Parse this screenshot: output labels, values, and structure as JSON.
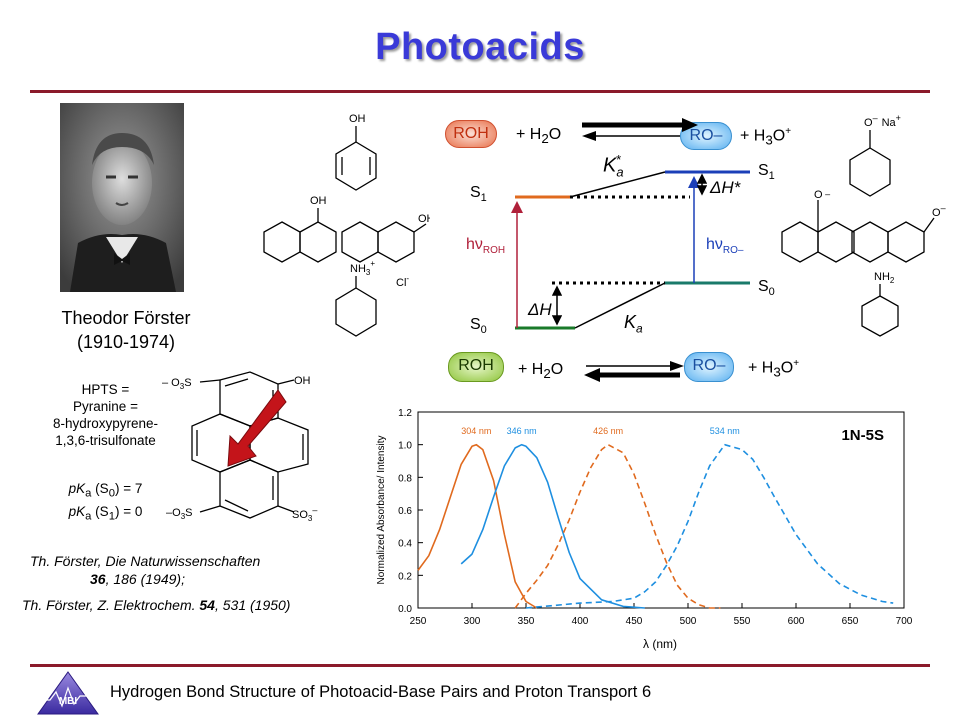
{
  "slide": {
    "title": "Photoacids",
    "footer": "Hydrogen Bond Structure of Photoacid-Base Pairs and Proton Transport 6",
    "logo_text": "MBI"
  },
  "person": {
    "name": "Theodor Förster",
    "years": "(1910-1974)"
  },
  "hpts": {
    "line1": "HPTS =",
    "line2": "Pyranine =",
    "line3": "8-hydroxypyrene-",
    "line4": "1,3,6-trisulfonate",
    "pka_s0_label": "pK",
    "pka_s0_rest": " (S",
    "pka_s0_sub": "0",
    "pka_s0_val": ") = 7",
    "pka_s1_rest": " (S",
    "pka_s1_sub": "1",
    "pka_s1_val": ") = 0",
    "pka_sub": "a"
  },
  "structures": {
    "oh": "OH",
    "o_minus": "O",
    "na_plus": "Na",
    "nh3": "NH",
    "nh2": "NH",
    "cl": "Cl",
    "so3_left_top": "O",
    "so3": "S",
    "so3_right": "SO"
  },
  "references": {
    "ref1_a": "Th. Förster, Die Naturwissenschaften",
    "ref1_vol": "36",
    "ref1_b": ", 186 (1949);",
    "ref2_a": "Th. Förster, Z. Elektrochem. ",
    "ref2_vol": "54",
    "ref2_b": ", 531 (1950)"
  },
  "scheme": {
    "roh": "ROH",
    "ro": "RO",
    "h2o": "+ H",
    "h3o": "+ H",
    "ka_star": "K",
    "ka": "K",
    "dh_star": "ΔH*",
    "dh": "ΔH",
    "s1": "S",
    "s0": "S",
    "hv_roh": "hν",
    "hv_ro": "hν",
    "hv_roh_sub": "ROH",
    "hv_ro_sub": "RO–"
  },
  "colors": {
    "title": "#3a3ad8",
    "rule": "#8b1a2a",
    "orange": "#e06a1e",
    "blue": "#1e8fe0",
    "dark_blue": "#1b3fb8",
    "green": "#1a7a2a",
    "teal": "#1a7a6a",
    "crimson": "#b0203a"
  },
  "chart_data": {
    "type": "line",
    "title": "1N-5S",
    "xlabel": "λ (nm)",
    "ylabel": "Normalized Absorbance/ Intensity",
    "xlim": [
      250,
      700
    ],
    "ylim": [
      0.0,
      1.2
    ],
    "xticks": [
      250,
      300,
      350,
      400,
      450,
      500,
      550,
      600,
      650,
      700
    ],
    "yticks": [
      0.0,
      0.2,
      0.4,
      0.6,
      0.8,
      1.0,
      1.2
    ],
    "peak_labels": [
      "304 nm",
      "346 nm",
      "426 nm",
      "534 nm"
    ],
    "series": [
      {
        "peak": 304,
        "color": "#e06a1e",
        "style": "solid",
        "x": [
          250,
          260,
          270,
          280,
          290,
          300,
          304,
          310,
          320,
          330,
          340,
          350,
          360
        ],
        "y": [
          0.23,
          0.32,
          0.48,
          0.68,
          0.88,
          0.99,
          1.0,
          0.97,
          0.78,
          0.45,
          0.16,
          0.04,
          0.0
        ]
      },
      {
        "peak": 346,
        "color": "#1e8fe0",
        "style": "solid",
        "x": [
          290,
          300,
          310,
          320,
          330,
          340,
          346,
          350,
          360,
          370,
          380,
          390,
          400,
          420,
          440,
          460
        ],
        "y": [
          0.27,
          0.33,
          0.48,
          0.68,
          0.87,
          0.98,
          1.0,
          0.99,
          0.92,
          0.77,
          0.55,
          0.34,
          0.18,
          0.05,
          0.01,
          0.0
        ]
      },
      {
        "peak": 426,
        "color": "#e06a1e",
        "style": "dashed",
        "x": [
          340,
          350,
          360,
          370,
          380,
          390,
          400,
          410,
          420,
          426,
          440,
          450,
          460,
          470,
          480,
          490,
          500,
          510,
          520,
          530
        ],
        "y": [
          0.0,
          0.09,
          0.17,
          0.26,
          0.39,
          0.54,
          0.71,
          0.86,
          0.97,
          1.0,
          0.95,
          0.82,
          0.64,
          0.45,
          0.28,
          0.14,
          0.06,
          0.02,
          0.0,
          0.0
        ]
      },
      {
        "peak": 534,
        "color": "#1e8fe0",
        "style": "dashed",
        "x": [
          350,
          400,
          430,
          450,
          460,
          470,
          480,
          490,
          500,
          510,
          520,
          534,
          550,
          560,
          570,
          580,
          600,
          620,
          640,
          660,
          680,
          690
        ],
        "y": [
          0.0,
          0.03,
          0.04,
          0.06,
          0.1,
          0.16,
          0.26,
          0.38,
          0.53,
          0.71,
          0.87,
          1.0,
          0.97,
          0.91,
          0.8,
          0.68,
          0.45,
          0.27,
          0.15,
          0.08,
          0.04,
          0.03
        ]
      }
    ]
  }
}
